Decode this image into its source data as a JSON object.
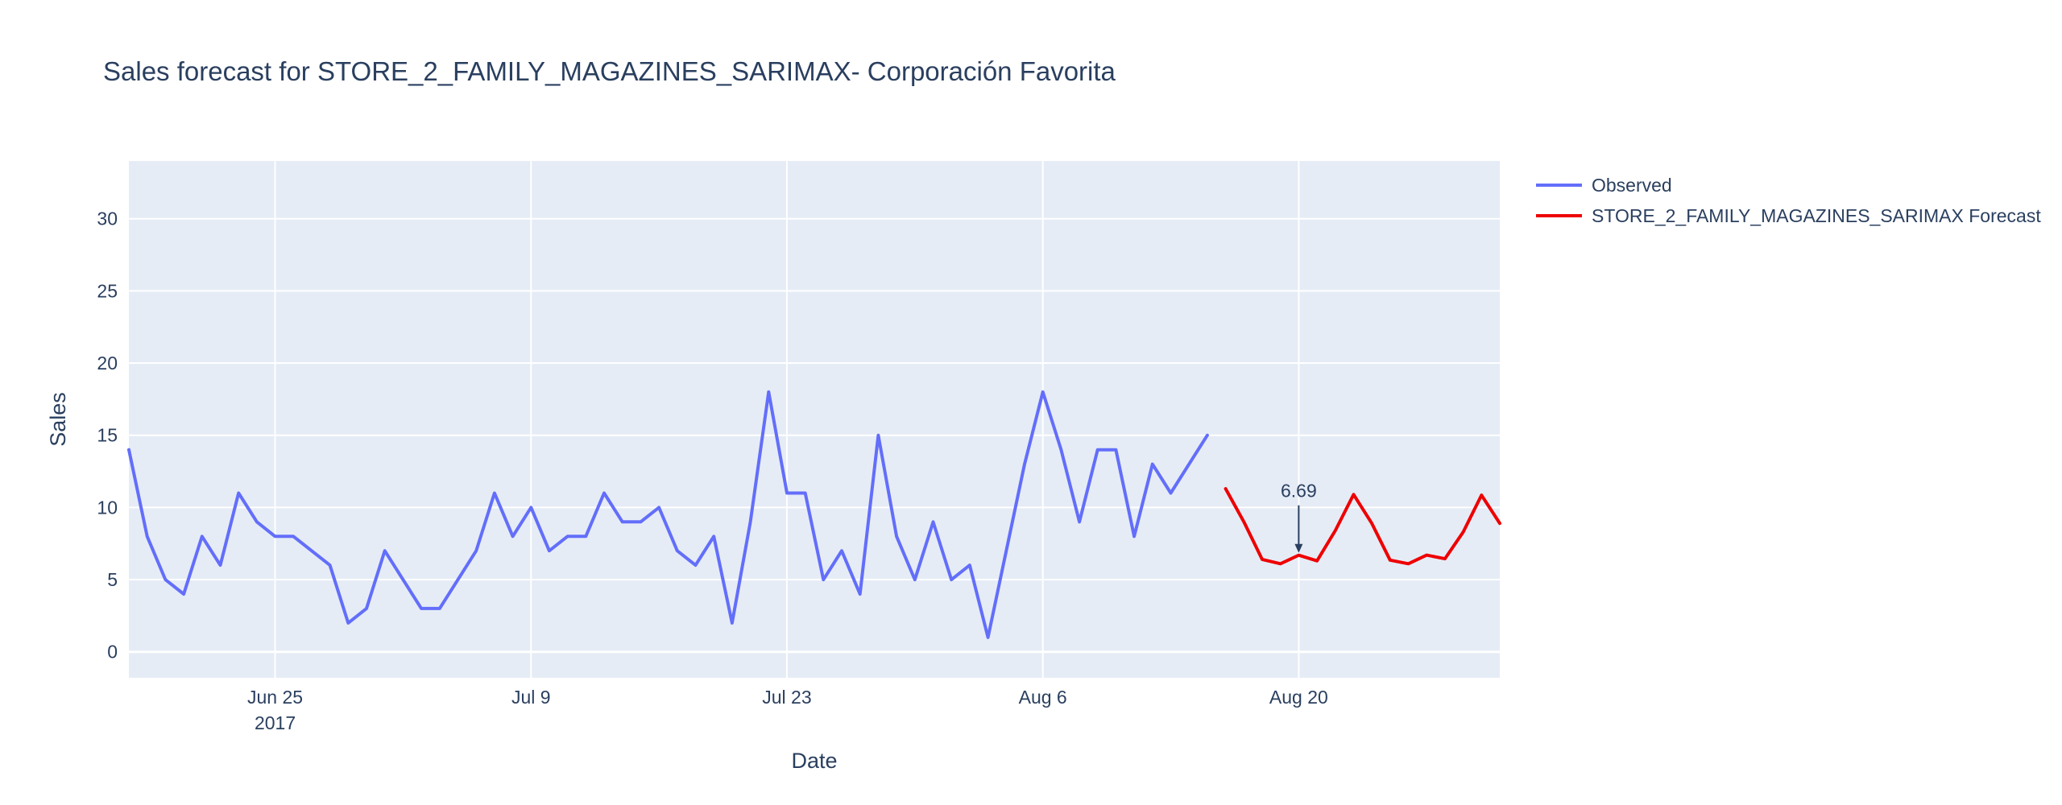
{
  "chart_data": {
    "type": "line",
    "title": "Sales forecast for STORE_2_FAMILY_MAGAZINES_SARIMAX- Corporación Favorita",
    "xlabel": "Date",
    "ylabel": "Sales",
    "ylim": [
      -1.8,
      34
    ],
    "xlim": [
      "2017-06-17",
      "2017-08-31"
    ],
    "x_ticks": [
      {
        "date": "2017-06-25",
        "label": "Jun 25",
        "sublabel": "2017"
      },
      {
        "date": "2017-07-09",
        "label": "Jul 9",
        "sublabel": ""
      },
      {
        "date": "2017-07-23",
        "label": "Jul 23",
        "sublabel": ""
      },
      {
        "date": "2017-08-06",
        "label": "Aug 6",
        "sublabel": ""
      },
      {
        "date": "2017-08-20",
        "label": "Aug 20",
        "sublabel": ""
      }
    ],
    "y_ticks": [
      0,
      5,
      10,
      15,
      20,
      25,
      30
    ],
    "grid": true,
    "legend_position": "top-right",
    "series": [
      {
        "name": "Observed",
        "color": "#636efa",
        "start": "2017-06-17",
        "values": [
          14,
          8,
          5,
          4,
          8,
          6,
          11,
          9,
          8,
          8,
          7,
          6,
          2,
          3,
          7,
          5,
          3,
          3,
          5,
          7,
          11,
          8,
          10,
          7,
          8,
          8,
          11,
          9,
          9,
          10,
          7,
          6,
          8,
          2,
          9,
          18,
          11,
          11,
          5,
          7,
          4,
          15,
          8,
          5,
          9,
          5,
          6,
          1,
          7,
          13,
          18,
          14,
          9,
          14,
          14,
          8,
          13,
          11,
          13,
          15
        ]
      },
      {
        "name": "STORE_2_FAMILY_MAGAZINES_SARIMAX Forecast",
        "color": "#ee0000",
        "start": "2017-08-16",
        "values": [
          11.3,
          9.0,
          6.4,
          6.1,
          6.69,
          6.3,
          8.4,
          10.9,
          8.9,
          6.35,
          6.1,
          6.7,
          6.45,
          8.3,
          10.85,
          8.9
        ]
      }
    ],
    "annotations": [
      {
        "text": "6.69",
        "date": "2017-08-20",
        "value": 6.69,
        "arrow": true
      }
    ]
  }
}
